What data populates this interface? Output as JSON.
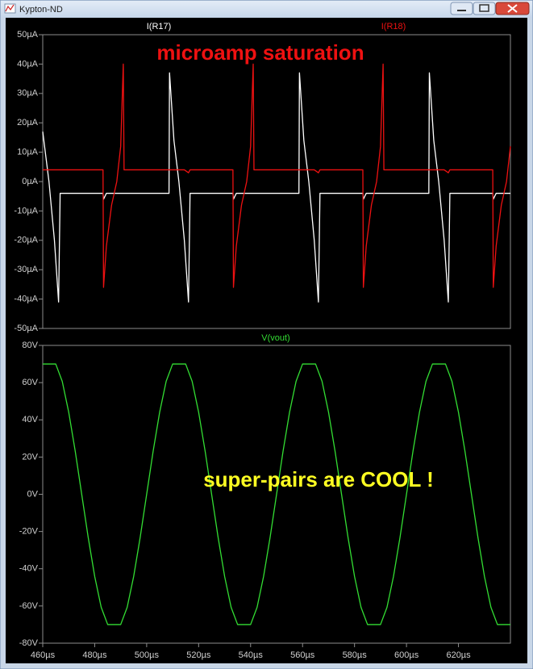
{
  "window": {
    "title": "Kypton-ND"
  },
  "chart_data": [
    {
      "type": "line",
      "annotation": {
        "text": "microamp saturation",
        "color": "#ee1111"
      },
      "xlim": [
        460,
        640
      ],
      "ylim": [
        -50,
        50
      ],
      "yticks": [
        {
          "value": 50,
          "label": "50µA"
        },
        {
          "value": 40,
          "label": "40µA"
        },
        {
          "value": 30,
          "label": "30µA"
        },
        {
          "value": 20,
          "label": "20µA"
        },
        {
          "value": 10,
          "label": "10µA"
        },
        {
          "value": 0,
          "label": "0µA"
        },
        {
          "value": -10,
          "label": "-10µA"
        },
        {
          "value": -20,
          "label": "-20µA"
        },
        {
          "value": -30,
          "label": "-30µA"
        },
        {
          "value": -40,
          "label": "-40µA"
        },
        {
          "value": -50,
          "label": "-50µA"
        }
      ],
      "x": [
        460,
        462.4,
        464.5,
        466.1,
        466.7,
        483.2,
        483.4,
        484.5,
        486.5,
        488.5,
        490,
        491,
        491.3,
        508.6,
        508.8,
        510.5,
        512.4,
        514.5,
        516.1,
        516.7,
        533.2,
        533.4,
        534.5,
        536.5,
        538.5,
        540,
        541,
        541.3,
        558.6,
        558.8,
        560.5,
        562.4,
        564.5,
        566.1,
        566.7,
        583.2,
        583.4,
        584.5,
        586.5,
        588.5,
        590,
        591,
        591.3,
        608.6,
        608.8,
        610.5,
        612.4,
        614.5,
        616.1,
        616.7,
        633.2,
        633.4,
        634.5,
        636.5,
        638.5,
        640
      ],
      "series": [
        {
          "name": "I(R17)",
          "color": "#ffffff",
          "values": [
            17,
            0,
            -20,
            -41,
            -4,
            -4,
            -6,
            -4,
            -4,
            -4,
            -4,
            -4,
            -4,
            -4,
            37,
            14,
            0,
            -20,
            -41,
            -4,
            -4,
            -6,
            -4,
            -4,
            -4,
            -4,
            -4,
            -4,
            -4,
            37,
            14,
            0,
            -20,
            -41,
            -4,
            -4,
            -6,
            -4,
            -4,
            -4,
            -4,
            -4,
            -4,
            -4,
            37,
            14,
            0,
            -20,
            -41,
            -4,
            -4,
            -6,
            -4,
            -4,
            -4,
            -4
          ]
        },
        {
          "name": "I(R18)",
          "color": "#ee1111",
          "values": [
            4,
            4,
            4,
            4,
            4,
            4,
            -36,
            -22,
            -8,
            0,
            12,
            40,
            4,
            4,
            4,
            4,
            4,
            4,
            3,
            4,
            4,
            -36,
            -22,
            -8,
            0,
            12,
            40,
            4,
            4,
            4,
            4,
            4,
            4,
            3,
            4,
            4,
            -36,
            -22,
            -8,
            0,
            12,
            40,
            4,
            4,
            4,
            4,
            4,
            4,
            3,
            4,
            4,
            -36,
            -22,
            -8,
            0,
            12
          ]
        }
      ]
    },
    {
      "type": "line",
      "annotation": {
        "text": "super-pairs are COOL !",
        "color": "#ffff22"
      },
      "xlim": [
        460,
        640
      ],
      "xticks": [
        {
          "value": 460,
          "label": "460µs"
        },
        {
          "value": 480,
          "label": "480µs"
        },
        {
          "value": 500,
          "label": "500µs"
        },
        {
          "value": 520,
          "label": "520µs"
        },
        {
          "value": 540,
          "label": "540µs"
        },
        {
          "value": 560,
          "label": "560µs"
        },
        {
          "value": 580,
          "label": "580µs"
        },
        {
          "value": 600,
          "label": "600µs"
        },
        {
          "value": 620,
          "label": "620µs"
        }
      ],
      "ylim": [
        -80,
        80
      ],
      "yticks": [
        {
          "value": 80,
          "label": "80V"
        },
        {
          "value": 60,
          "label": "60V"
        },
        {
          "value": 40,
          "label": "40V"
        },
        {
          "value": 20,
          "label": "20V"
        },
        {
          "value": 0,
          "label": "0V"
        },
        {
          "value": -20,
          "label": "-20V"
        },
        {
          "value": -40,
          "label": "-40V"
        },
        {
          "value": -60,
          "label": "-60V"
        },
        {
          "value": -80,
          "label": "-80V"
        }
      ],
      "x": [
        460,
        462.5,
        465,
        467.5,
        470,
        472.5,
        475,
        477.5,
        480,
        482.5,
        485,
        487.5,
        490,
        492.5,
        495,
        497.5,
        500,
        502.5,
        505,
        507.5,
        510,
        512.5,
        515,
        517.5,
        520,
        522.5,
        525,
        527.5,
        530,
        532.5,
        535,
        537.5,
        540,
        542.5,
        545,
        547.5,
        550,
        552.5,
        555,
        557.5,
        560,
        562.5,
        565,
        567.5,
        570,
        572.5,
        575,
        577.5,
        580,
        582.5,
        585,
        587.5,
        590,
        592.5,
        595,
        597.5,
        600,
        602.5,
        605,
        607.5,
        610,
        612.5,
        615,
        617.5,
        620,
        622.5,
        625,
        627.5,
        630,
        632.5,
        635,
        637.5,
        640
      ],
      "series": [
        {
          "name": "V(vout)",
          "color": "#33dd33",
          "values": [
            70,
            70,
            70,
            60.7,
            44.1,
            23.2,
            0,
            -23.2,
            -44.1,
            -60.7,
            -70,
            -70,
            -70,
            -60.7,
            -44.1,
            -23.2,
            0,
            23.2,
            44.1,
            60.7,
            70,
            70,
            70,
            60.7,
            44.1,
            23.2,
            0,
            -23.2,
            -44.1,
            -60.7,
            -70,
            -70,
            -70,
            -60.7,
            -44.1,
            -23.2,
            0,
            23.2,
            44.1,
            60.7,
            70,
            70,
            70,
            60.7,
            44.1,
            23.2,
            0,
            -23.2,
            -44.1,
            -60.7,
            -70,
            -70,
            -70,
            -60.7,
            -44.1,
            -23.2,
            0,
            23.2,
            44.1,
            60.7,
            70,
            70,
            70,
            60.7,
            44.1,
            23.2,
            0,
            -23.2,
            -44.1,
            -60.7,
            -70,
            -70,
            -70
          ]
        }
      ]
    }
  ]
}
